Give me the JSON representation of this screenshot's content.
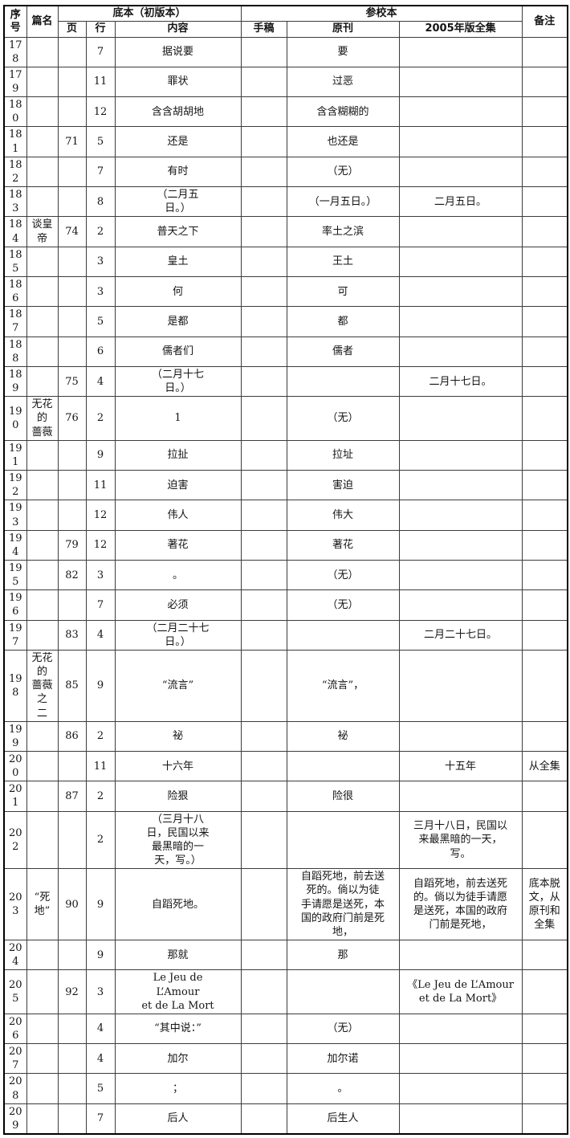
{
  "header": {
    "col_no": "序\n号",
    "col_title": "篇名",
    "group_base": "底本（初版本）",
    "col_page": "页",
    "col_line": "行",
    "col_content": "内容",
    "group_collation": "参校本",
    "col_ms": "手稿",
    "col_orig": "原刊",
    "col_2005": "2005年版全集",
    "col_note": "备注"
  },
  "rows": [
    {
      "no": "178",
      "title": "",
      "page": "",
      "line": "7",
      "content": "据说要",
      "ms": "",
      "orig": "要",
      "ed2005": "",
      "note": ""
    },
    {
      "no": "179",
      "title": "",
      "page": "",
      "line": "11",
      "content": "罪状",
      "ms": "",
      "orig": "过恶",
      "ed2005": "",
      "note": ""
    },
    {
      "no": "180",
      "title": "",
      "page": "",
      "line": "12",
      "content": "含含胡胡地",
      "ms": "",
      "orig": "含含糊糊的",
      "ed2005": "",
      "note": ""
    },
    {
      "no": "181",
      "title": "",
      "page": "71",
      "line": "5",
      "content": "还是",
      "ms": "",
      "orig": "也还是",
      "ed2005": "",
      "note": ""
    },
    {
      "no": "182",
      "title": "",
      "page": "",
      "line": "7",
      "content": "有时",
      "ms": "",
      "orig": "（无）",
      "ed2005": "",
      "note": ""
    },
    {
      "no": "183",
      "title": "",
      "page": "",
      "line": "8",
      "content": "（二月五\n日。）",
      "ms": "",
      "orig": "（一月五日。）",
      "ed2005": "二月五日。",
      "note": ""
    },
    {
      "no": "184",
      "title": "谈皇帝",
      "page": "74",
      "line": "2",
      "content": "普天之下",
      "ms": "",
      "orig": "率土之滨",
      "ed2005": "",
      "note": ""
    },
    {
      "no": "185",
      "title": "",
      "page": "",
      "line": "3",
      "content": "皇土",
      "ms": "",
      "orig": "王土",
      "ed2005": "",
      "note": ""
    },
    {
      "no": "186",
      "title": "",
      "page": "",
      "line": "3",
      "content": "何",
      "ms": "",
      "orig": "可",
      "ed2005": "",
      "note": ""
    },
    {
      "no": "187",
      "title": "",
      "page": "",
      "line": "5",
      "content": "是都",
      "ms": "",
      "orig": "都",
      "ed2005": "",
      "note": ""
    },
    {
      "no": "188",
      "title": "",
      "page": "",
      "line": "6",
      "content": "儒者们",
      "ms": "",
      "orig": "儒者",
      "ed2005": "",
      "note": ""
    },
    {
      "no": "189",
      "title": "",
      "page": "75",
      "line": "4",
      "content": "（二月十七\n日。）",
      "ms": "",
      "orig": "",
      "ed2005": "二月十七日。",
      "note": ""
    },
    {
      "no": "190",
      "title": "无花的\n蔷薇",
      "page": "76",
      "line": "2",
      "content": "1",
      "ms": "",
      "orig": "（无）",
      "ed2005": "",
      "note": ""
    },
    {
      "no": "191",
      "title": "",
      "page": "",
      "line": "9",
      "content": "拉扯",
      "ms": "",
      "orig": "拉址",
      "ed2005": "",
      "note": ""
    },
    {
      "no": "192",
      "title": "",
      "page": "",
      "line": "11",
      "content": "迫害",
      "ms": "",
      "orig": "害迫",
      "ed2005": "",
      "note": ""
    },
    {
      "no": "193",
      "title": "",
      "page": "",
      "line": "12",
      "content": "伟人",
      "ms": "",
      "orig": "伟大",
      "ed2005": "",
      "note": ""
    },
    {
      "no": "194",
      "title": "",
      "page": "79",
      "line": "12",
      "content": "著花",
      "ms": "",
      "orig": "著花",
      "ed2005": "",
      "note": ""
    },
    {
      "no": "195",
      "title": "",
      "page": "82",
      "line": "3",
      "content": "。",
      "ms": "",
      "orig": "（无）",
      "ed2005": "",
      "note": ""
    },
    {
      "no": "196",
      "title": "",
      "page": "",
      "line": "7",
      "content": "必须",
      "ms": "",
      "orig": "（无）",
      "ed2005": "",
      "note": ""
    },
    {
      "no": "197",
      "title": "",
      "page": "83",
      "line": "4",
      "content": "（二月二十七\n日。）",
      "ms": "",
      "orig": "",
      "ed2005": "二月二十七日。",
      "note": ""
    },
    {
      "no": "198",
      "title": "无花的\n蔷薇之\n二",
      "page": "85",
      "line": "9",
      "content": "“流言”",
      "ms": "",
      "orig": "“流言”，",
      "ed2005": "",
      "note": ""
    },
    {
      "no": "199",
      "title": "",
      "page": "86",
      "line": "2",
      "content": "祕",
      "ms": "",
      "orig": "袐",
      "ed2005": "",
      "note": ""
    },
    {
      "no": "200",
      "title": "",
      "page": "",
      "line": "11",
      "content": "十六年",
      "ms": "",
      "orig": "",
      "ed2005": "十五年",
      "note": "从全集"
    },
    {
      "no": "201",
      "title": "",
      "page": "87",
      "line": "2",
      "content": "险狠",
      "ms": "",
      "orig": "险很",
      "ed2005": "",
      "note": ""
    },
    {
      "no": "202",
      "title": "",
      "page": "",
      "line": "2",
      "content": "（三月十八\n日，民国以来\n最黑暗的一\n天，写。）",
      "ms": "",
      "orig": "",
      "ed2005": "三月十八日，民国以\n来最黑暗的一天，\n写。",
      "note": ""
    },
    {
      "no": "203",
      "title": "“死\n地”",
      "page": "90",
      "line": "9",
      "content": "自蹈死地。",
      "ms": "",
      "orig": "自蹈死地，前去送\n死的。倘以为徒\n手请愿是送死，本\n国的政府门前是死\n地，",
      "ed2005": "自蹈死地，前去送死\n的。倘以为徒手请愿\n是送死，本国的政府\n门前是死地，",
      "note": "底本脱\n文，从\n原刊和\n全集"
    },
    {
      "no": "204",
      "title": "",
      "page": "",
      "line": "9",
      "content": "那就",
      "ms": "",
      "orig": "那",
      "ed2005": "",
      "note": ""
    },
    {
      "no": "205",
      "title": "",
      "page": "92",
      "line": "3",
      "content": "Le Jeu de\nL’Amour\net de La Mort",
      "ms": "",
      "orig": "",
      "ed2005": "《Le Jeu de L’Amour\net de La Mort》",
      "note": ""
    },
    {
      "no": "206",
      "title": "",
      "page": "",
      "line": "4",
      "content": "“其中说：”",
      "ms": "",
      "orig": "（无）",
      "ed2005": "",
      "note": ""
    },
    {
      "no": "207",
      "title": "",
      "page": "",
      "line": "4",
      "content": "加尔",
      "ms": "",
      "orig": "加尔诺",
      "ed2005": "",
      "note": ""
    },
    {
      "no": "208",
      "title": "",
      "page": "",
      "line": "5",
      "content": "；",
      "ms": "",
      "orig": "。",
      "ed2005": "",
      "note": ""
    },
    {
      "no": "209",
      "title": "",
      "page": "",
      "line": "7",
      "content": "后人",
      "ms": "",
      "orig": "后生人",
      "ed2005": "",
      "note": ""
    }
  ]
}
